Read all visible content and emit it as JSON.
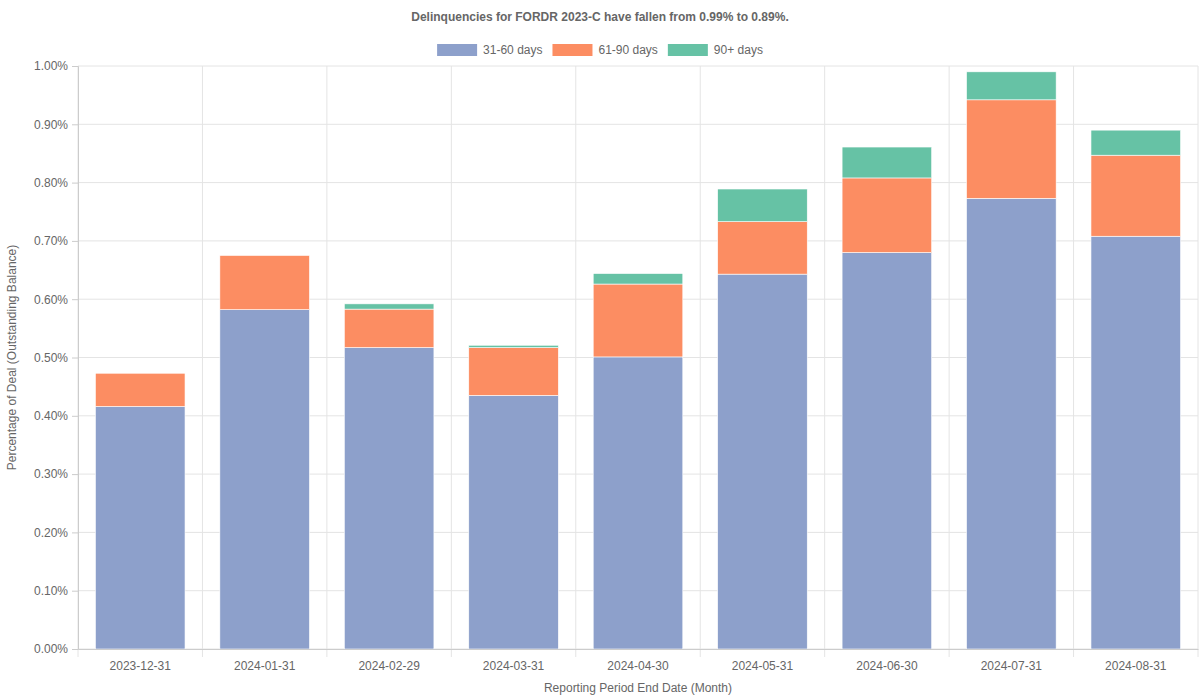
{
  "chart_data": {
    "type": "bar",
    "title": "Delinquencies for FORDR 2023-C have fallen from 0.99% to 0.89%.",
    "x_label": "Reporting Period End Date (Month)",
    "y_label": "Percentage of Deal (Outstanding Balance)",
    "categories": [
      "2023-12-31",
      "2024-01-31",
      "2024-02-29",
      "2024-03-31",
      "2024-04-30",
      "2024-05-31",
      "2024-06-30",
      "2024-07-31",
      "2024-08-31"
    ],
    "series": [
      {
        "name": "31-60 days",
        "color": "#8da0cb",
        "values": [
          0.416,
          0.582,
          0.517,
          0.435,
          0.501,
          0.643,
          0.68,
          0.773,
          0.708
        ]
      },
      {
        "name": "61-90 days",
        "color": "#fc8d62",
        "values": [
          0.057,
          0.093,
          0.066,
          0.082,
          0.125,
          0.09,
          0.128,
          0.169,
          0.139
        ]
      },
      {
        "name": "90+ days",
        "color": "#66c2a5",
        "values": [
          0,
          0,
          0.009,
          0.004,
          0.018,
          0.056,
          0.053,
          0.048,
          0.043
        ]
      }
    ],
    "ylim": [
      0,
      1
    ],
    "yticks": [
      {
        "value": 0,
        "label": "0.00%"
      },
      {
        "value": 0.1,
        "label": "0.10%"
      },
      {
        "value": 0.2,
        "label": "0.20%"
      },
      {
        "value": 0.3,
        "label": "0.30%"
      },
      {
        "value": 0.4,
        "label": "0.40%"
      },
      {
        "value": 0.5,
        "label": "0.50%"
      },
      {
        "value": 0.6,
        "label": "0.60%"
      },
      {
        "value": 0.7,
        "label": "0.70%"
      },
      {
        "value": 0.8,
        "label": "0.80%"
      },
      {
        "value": 0.9,
        "label": "0.90%"
      },
      {
        "value": 1,
        "label": "1.00%"
      }
    ],
    "stacked": true,
    "grid": true,
    "legend": "top"
  }
}
